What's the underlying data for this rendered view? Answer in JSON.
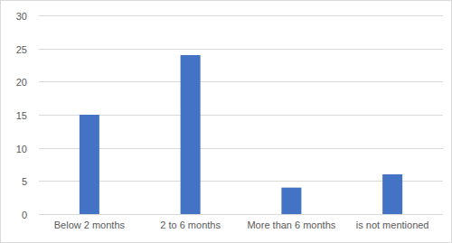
{
  "chart_data": {
    "type": "bar",
    "categories": [
      "Below 2 months",
      "2 to 6 months",
      "More than 6 months",
      "is not mentioned"
    ],
    "values": [
      15,
      24,
      4,
      6
    ],
    "color": "#4472c4",
    "ylim": [
      0,
      30
    ],
    "yticks": [
      0,
      5,
      10,
      15,
      20,
      25,
      30
    ],
    "grid": true
  }
}
